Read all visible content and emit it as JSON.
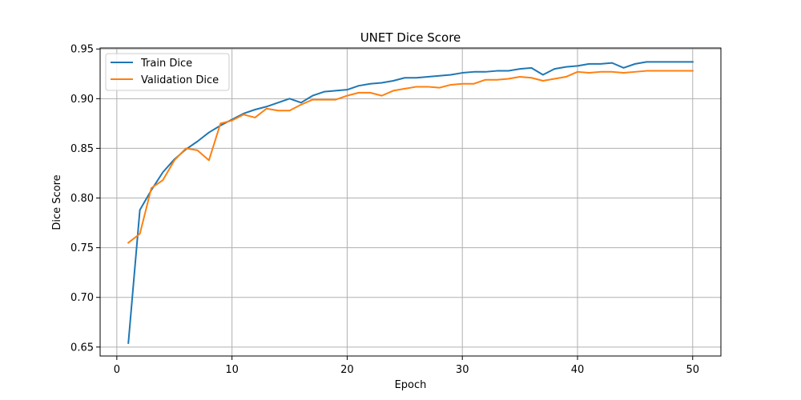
{
  "chart_data": {
    "type": "line",
    "title": "UNET Dice Score",
    "xlabel": "Epoch",
    "ylabel": "Dice Score",
    "xlim": [
      -1.45,
      52.45
    ],
    "ylim": [
      0.641,
      0.951
    ],
    "xticks": [
      0,
      10,
      20,
      30,
      40,
      50
    ],
    "yticks": [
      0.65,
      0.7,
      0.75,
      0.8,
      0.85,
      0.9,
      0.95
    ],
    "ytick_labels": [
      "0.65",
      "0.70",
      "0.75",
      "0.80",
      "0.85",
      "0.90",
      "0.95"
    ],
    "grid": true,
    "legend_position": "top-left",
    "x": [
      1,
      2,
      3,
      4,
      5,
      6,
      7,
      8,
      9,
      10,
      11,
      12,
      13,
      14,
      15,
      16,
      17,
      18,
      19,
      20,
      21,
      22,
      23,
      24,
      25,
      26,
      27,
      28,
      29,
      30,
      31,
      32,
      33,
      34,
      35,
      36,
      37,
      38,
      39,
      40,
      41,
      42,
      43,
      44,
      45,
      46,
      47,
      48,
      49,
      50
    ],
    "series": [
      {
        "name": "Train Dice",
        "color": "#1f77b4",
        "values": [
          0.654,
          0.788,
          0.808,
          0.826,
          0.839,
          0.849,
          0.857,
          0.866,
          0.873,
          0.879,
          0.885,
          0.889,
          0.892,
          0.896,
          0.9,
          0.896,
          0.903,
          0.907,
          0.908,
          0.909,
          0.913,
          0.915,
          0.916,
          0.918,
          0.921,
          0.921,
          0.922,
          0.923,
          0.924,
          0.926,
          0.927,
          0.927,
          0.928,
          0.928,
          0.93,
          0.931,
          0.924,
          0.93,
          0.932,
          0.933,
          0.935,
          0.935,
          0.936,
          0.931,
          0.935,
          0.937,
          0.937,
          0.937,
          0.937,
          0.937
        ]
      },
      {
        "name": "Validation Dice",
        "color": "#ff7f0e",
        "values": [
          0.755,
          0.764,
          0.81,
          0.818,
          0.838,
          0.85,
          0.848,
          0.838,
          0.875,
          0.878,
          0.884,
          0.881,
          0.89,
          0.888,
          0.888,
          0.894,
          0.899,
          0.899,
          0.899,
          0.903,
          0.906,
          0.906,
          0.903,
          0.908,
          0.91,
          0.912,
          0.912,
          0.911,
          0.914,
          0.915,
          0.915,
          0.919,
          0.919,
          0.92,
          0.922,
          0.921,
          0.918,
          0.92,
          0.922,
          0.927,
          0.926,
          0.927,
          0.927,
          0.926,
          0.927,
          0.928,
          0.928,
          0.928,
          0.928,
          0.928
        ]
      }
    ]
  }
}
